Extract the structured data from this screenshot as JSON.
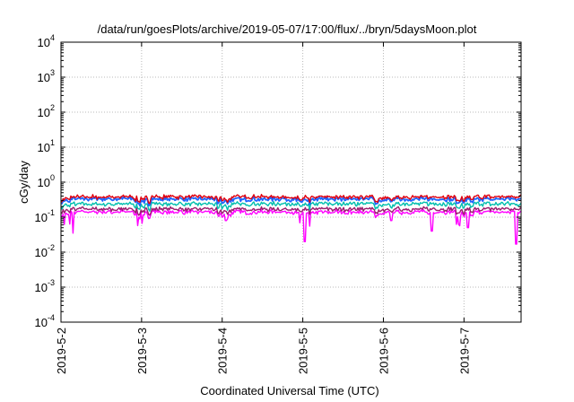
{
  "chart_data": {
    "type": "line",
    "title": "/data/run/goesPlots/archive/2019-05-07/17:00/flux/../bryn/5daysMoon.plot",
    "xlabel": "Coordinated Universal Time (UTC)",
    "ylabel": "cGy/day",
    "yscale": "log",
    "ylim_exponents": [
      -4,
      4
    ],
    "y_ticks": [
      {
        "base": "10",
        "exp": "-4"
      },
      {
        "base": "10",
        "exp": "-3"
      },
      {
        "base": "10",
        "exp": "-2"
      },
      {
        "base": "10",
        "exp": "-1"
      },
      {
        "base": "10",
        "exp": "0"
      },
      {
        "base": "10",
        "exp": "1"
      },
      {
        "base": "10",
        "exp": "2"
      },
      {
        "base": "10",
        "exp": "3"
      },
      {
        "base": "10",
        "exp": "4"
      }
    ],
    "x_range_days": [
      "2019-05-02",
      "2019-05-07 17:00"
    ],
    "x_ticks": [
      "2019-5-2",
      "2019-5-3",
      "2019-5-4",
      "2019-5-5",
      "2019-5-6",
      "2019-5-7"
    ],
    "grid": true,
    "series_colors": [
      "#e0000f",
      "#1e64ff",
      "#00bfae",
      "#ff00ff",
      "#9b1c6e"
    ],
    "series": [
      {
        "color": "#e0000f",
        "typical": 0.38
      },
      {
        "color": "#1e64ff",
        "typical": 0.33
      },
      {
        "color": "#00bfae",
        "typical": 0.24
      },
      {
        "color": "#ff00ff",
        "typical": 0.14
      },
      {
        "color": "#9b1c6e",
        "typical": 0.17
      }
    ],
    "dips": [
      {
        "day": 0.15,
        "value": 0.035
      },
      {
        "day": 2.05,
        "value": 0.08
      },
      {
        "day": 3.02,
        "value": 0.02
      },
      {
        "day": 4.1,
        "value": 0.08
      },
      {
        "day": 4.6,
        "value": 0.04
      },
      {
        "day": 5.05,
        "value": 0.05
      },
      {
        "day": 5.65,
        "value": 0.017
      }
    ]
  }
}
